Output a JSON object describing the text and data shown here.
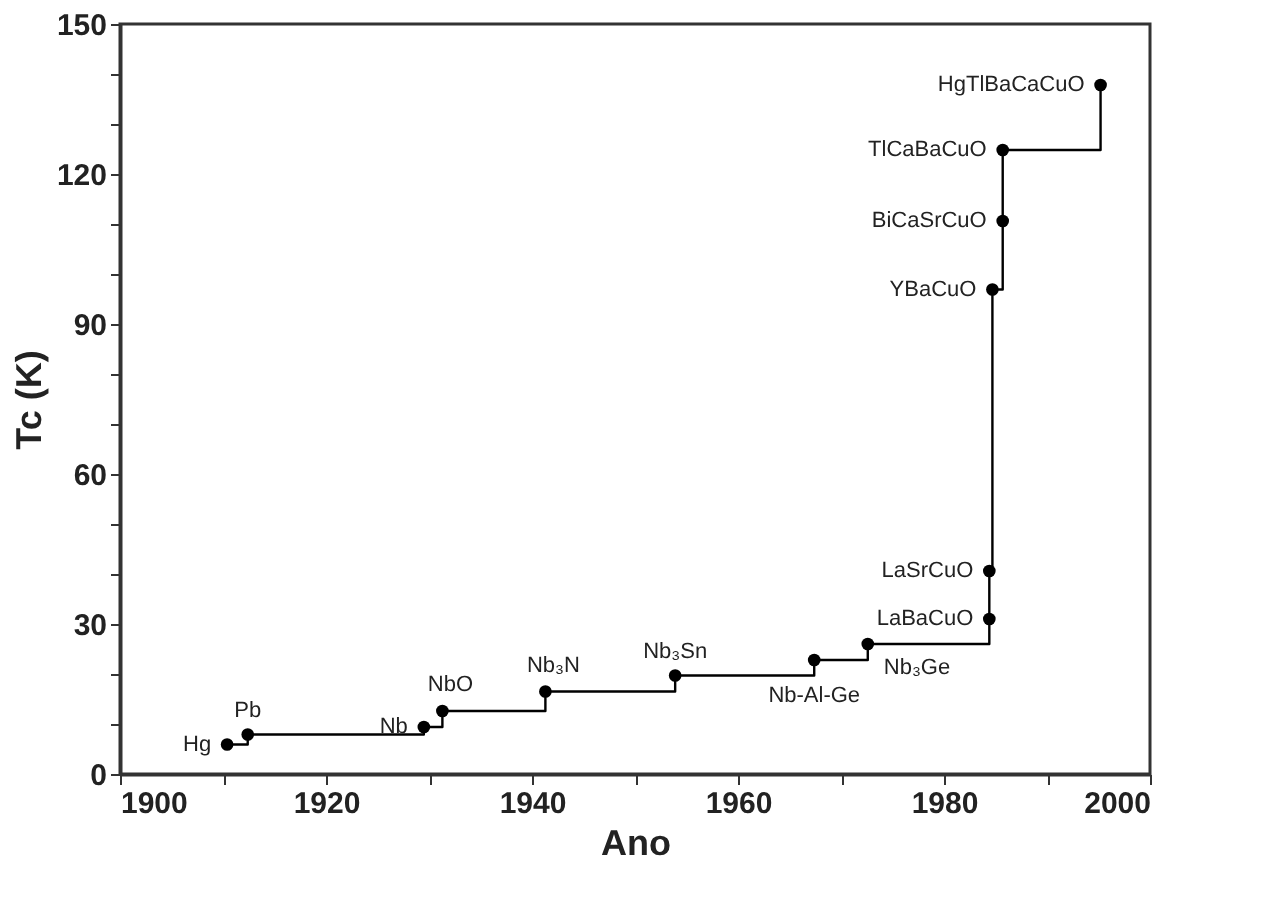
{
  "chart_data": {
    "type": "step",
    "xlabel": "Ano",
    "ylabel": "Tc (K)",
    "x": [
      1910.4,
      1912.4,
      1929.5,
      1931.3,
      1941.3,
      1953.9,
      1967.4,
      1972.6,
      1984.4,
      1984.4,
      1984.7,
      1985.7,
      1985.7,
      1995.2
    ],
    "series": [
      {
        "color": "#000000",
        "values": [
          5.9,
          7.9,
          9.4,
          12.6,
          16.5,
          19.7,
          22.8,
          26,
          31,
          40.6,
          96.9,
          110.6,
          124.8,
          137.8
        ]
      }
    ],
    "xlim": [
      1900,
      2000
    ],
    "ylim": [
      0,
      150
    ],
    "xticks": [
      1900,
      {
        "value": 1910,
        "label": null
      },
      1920,
      {
        "value": 1930,
        "label": null
      },
      1940,
      {
        "value": 1950,
        "label": null
      },
      1960,
      {
        "value": 1970,
        "label": null
      },
      1980,
      {
        "value": 1990,
        "label": null
      },
      2000
    ],
    "yticks": [
      0,
      {
        "value": 10,
        "label": null
      },
      {
        "value": 20,
        "label": null
      },
      30,
      {
        "value": 40,
        "label": null
      },
      {
        "value": 50,
        "label": null
      },
      60,
      {
        "value": 70,
        "label": null
      },
      {
        "value": 80,
        "label": null
      },
      90,
      {
        "value": 100,
        "label": null
      },
      {
        "value": 110,
        "label": null
      },
      120,
      {
        "value": 130,
        "label": null
      },
      {
        "value": 140,
        "label": null
      },
      150
    ],
    "annotations": [
      {
        "text": "Hg",
        "x": 1910.4,
        "y": 5.9
      },
      {
        "text": "Pb",
        "x": 1912.4,
        "y": 7.9
      },
      {
        "text": "Nb",
        "x": 1929.5,
        "y": 9.4
      },
      {
        "text": "NbO",
        "x": 1931.3,
        "y": 12.6
      },
      {
        "text": "Nb₃N",
        "x": 1941.3,
        "y": 16.5
      },
      {
        "text": "Nb₃Sn",
        "x": 1953.9,
        "y": 19.7
      },
      {
        "text": "Nb-Al-Ge",
        "x": 1967.4,
        "y": 22.8
      },
      {
        "text": "Nb₃Ge",
        "x": 1972.6,
        "y": 26
      },
      {
        "text": "LaBaCuO",
        "x": 1984.4,
        "y": 31
      },
      {
        "text": "LaSrCuO",
        "x": 1984.4,
        "y": 40.6
      },
      {
        "text": "YBaCuO",
        "x": 1984.7,
        "y": 96.9
      },
      {
        "text": "BiCaSrCuO",
        "x": 1985.7,
        "y": 110.6
      },
      {
        "text": "TlCaBaCuO",
        "x": 1985.7,
        "y": 124.8
      },
      {
        "text": "HgTlBaCaCuO",
        "x": 1995.2,
        "y": 137.8
      }
    ],
    "marker": "circle",
    "line_style": "solid",
    "grid": false
  }
}
